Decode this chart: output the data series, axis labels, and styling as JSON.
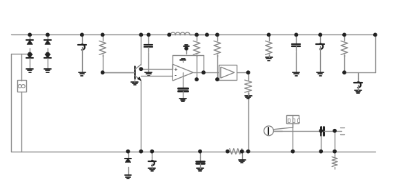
{
  "bg_color": "#ffffff",
  "lc": "#888888",
  "fc": "#222222",
  "lw": 1.0,
  "fig_width": 5.87,
  "fig_height": 2.8,
  "dpi": 100
}
